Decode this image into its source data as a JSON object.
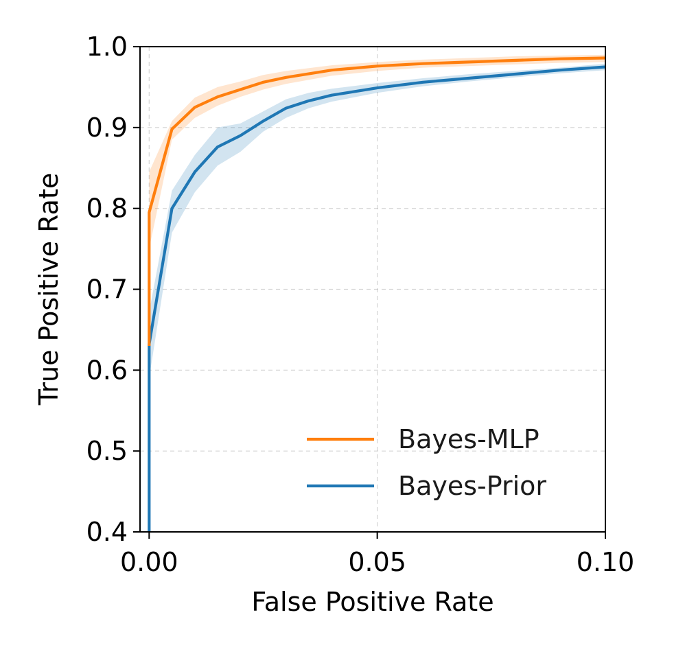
{
  "chart_data": {
    "type": "line",
    "title": "",
    "xlabel": "False Positive Rate",
    "ylabel": "True Positive Rate",
    "xlim": [
      -0.002,
      0.1
    ],
    "ylim": [
      0.4,
      1.0
    ],
    "xticks": [
      0.0,
      0.05,
      0.1
    ],
    "xtick_labels": [
      "0.00",
      "0.05",
      "0.10"
    ],
    "yticks": [
      0.4,
      0.5,
      0.6,
      0.7,
      0.8,
      0.9,
      1.0
    ],
    "ytick_labels": [
      "0.4",
      "0.5",
      "0.6",
      "0.7",
      "0.8",
      "0.9",
      "1.0"
    ],
    "grid": true,
    "legend_position": "lower-right",
    "series": [
      {
        "name": "Bayes-MLP",
        "color": "#ff7f0e",
        "band_color": "#ff7f0e",
        "x": [
          0.0,
          0.0,
          0.0,
          0.005,
          0.01,
          0.015,
          0.02,
          0.025,
          0.03,
          0.04,
          0.05,
          0.06,
          0.07,
          0.08,
          0.09,
          0.1
        ],
        "y": [
          0.63,
          0.74,
          0.795,
          0.898,
          0.925,
          0.938,
          0.947,
          0.956,
          0.962,
          0.971,
          0.976,
          0.979,
          0.981,
          0.983,
          0.985,
          0.986
        ],
        "lower": [
          0.6,
          0.7,
          0.75,
          0.885,
          0.912,
          0.927,
          0.938,
          0.947,
          0.954,
          0.964,
          0.97,
          0.974,
          0.976,
          0.978,
          0.98,
          0.981
        ],
        "upper": [
          0.66,
          0.78,
          0.845,
          0.908,
          0.937,
          0.95,
          0.957,
          0.965,
          0.97,
          0.977,
          0.981,
          0.984,
          0.986,
          0.988,
          0.989,
          0.99
        ]
      },
      {
        "name": "Bayes-Prior",
        "color": "#1f77b4",
        "band_color": "#1f77b4",
        "x": [
          0.0,
          0.0,
          0.005,
          0.01,
          0.015,
          0.02,
          0.025,
          0.03,
          0.035,
          0.04,
          0.05,
          0.06,
          0.07,
          0.08,
          0.09,
          0.1
        ],
        "y": [
          0.39,
          0.632,
          0.8,
          0.845,
          0.876,
          0.89,
          0.908,
          0.924,
          0.933,
          0.94,
          0.949,
          0.956,
          0.961,
          0.966,
          0.971,
          0.975
        ],
        "lower": [
          0.37,
          0.59,
          0.77,
          0.82,
          0.853,
          0.87,
          0.895,
          0.912,
          0.924,
          0.932,
          0.943,
          0.951,
          0.957,
          0.962,
          0.967,
          0.971
        ],
        "upper": [
          0.41,
          0.672,
          0.822,
          0.866,
          0.9,
          0.905,
          0.92,
          0.935,
          0.943,
          0.948,
          0.955,
          0.961,
          0.966,
          0.97,
          0.974,
          0.979
        ]
      }
    ]
  }
}
